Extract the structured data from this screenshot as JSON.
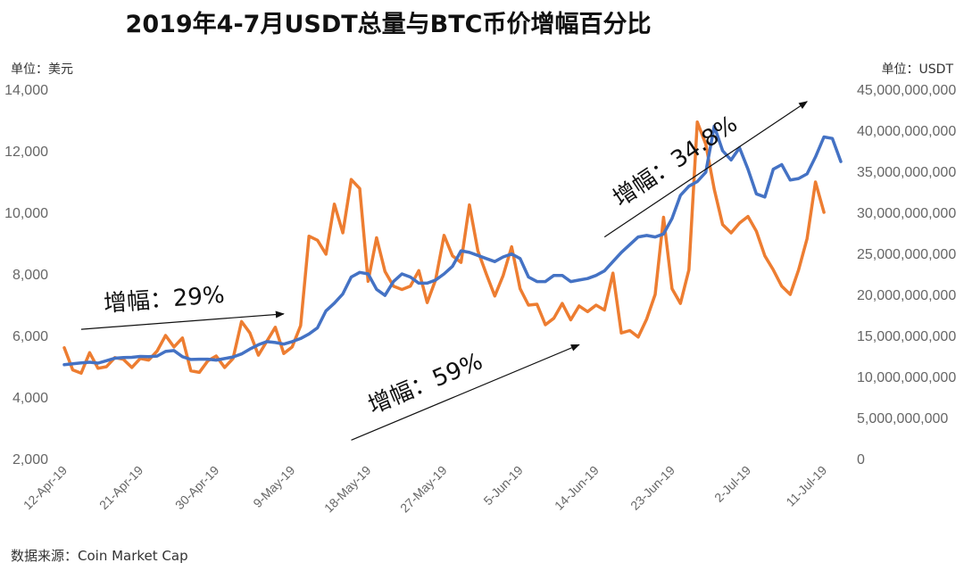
{
  "chart_data": {
    "type": "line",
    "title": "2019年4-7月USDT总量与BTC币价增幅百分比",
    "ylabel_left": "单位：美元",
    "ylabel_right": "单位：USDT",
    "ylim_left": [
      2000,
      14000
    ],
    "ylim_right": [
      0,
      45000000000
    ],
    "yticks_left": [
      "2,000",
      "4,000",
      "6,000",
      "8,000",
      "10,000",
      "12,000",
      "14,000"
    ],
    "yticks_right": [
      "0",
      "5,000,000,000",
      "10,000,000,000",
      "15,000,000,000",
      "20,000,000,000",
      "25,000,000,000",
      "30,000,000,000",
      "35,000,000,000",
      "40,000,000,000",
      "45,000,000,000"
    ],
    "x_tick_labels": [
      "12-Apr-19",
      "21-Apr-19",
      "30-Apr-19",
      "9-May-19",
      "18-May-19",
      "27-May-19",
      "5-Jun-19",
      "14-Jun-19",
      "23-Jun-19",
      "2-Jul-19",
      "11-Jul-19"
    ],
    "x_tick_index": [
      0,
      9,
      18,
      27,
      36,
      45,
      54,
      63,
      72,
      81,
      90
    ],
    "series": [
      {
        "name": "BTC",
        "axis": "left",
        "color": "#4472C4",
        "values": [
          5050,
          5080,
          5110,
          5130,
          5100,
          5180,
          5260,
          5280,
          5290,
          5320,
          5310,
          5330,
          5480,
          5510,
          5310,
          5220,
          5230,
          5230,
          5200,
          5250,
          5300,
          5400,
          5560,
          5700,
          5800,
          5770,
          5720,
          5800,
          5900,
          6050,
          6250,
          6800,
          7050,
          7350,
          7900,
          8050,
          8000,
          7500,
          7300,
          7750,
          8000,
          7900,
          7700,
          7700,
          7800,
          8000,
          8250,
          8750,
          8700,
          8600,
          8500,
          8400,
          8550,
          8650,
          8500,
          7900,
          7750,
          7750,
          7950,
          7950,
          7750,
          7800,
          7850,
          7950,
          8100,
          8400,
          8700,
          8950,
          9200,
          9250,
          9200,
          9300,
          9800,
          10550,
          10850,
          11000,
          11300,
          12800,
          12000,
          11700,
          12100,
          11400,
          10600,
          10500,
          11400,
          11550,
          11050,
          11100,
          11250,
          11800,
          12450,
          12400,
          11650
        ]
      },
      {
        "name": "USDT",
        "axis": "right",
        "color": "#ED7D31",
        "values": [
          13500000000,
          10800000000,
          10400000000,
          12900000000,
          11000000000,
          11200000000,
          12300000000,
          12100000000,
          11100000000,
          12200000000,
          12000000000,
          13100000000,
          15000000000,
          13600000000,
          14700000000,
          10700000000,
          10500000000,
          11900000000,
          12500000000,
          11100000000,
          12200000000,
          16700000000,
          15300000000,
          12600000000,
          14300000000,
          16000000000,
          12800000000,
          13600000000,
          16200000000,
          27100000000,
          26600000000,
          24900000000,
          31000000000,
          27500000000,
          34000000000,
          32900000000,
          21600000000,
          26900000000,
          22800000000,
          21000000000,
          20600000000,
          21000000000,
          22900000000,
          19000000000,
          21800000000,
          27200000000,
          24700000000,
          23900000000,
          30900000000,
          25300000000,
          22500000000,
          19800000000,
          22300000000,
          25800000000,
          20700000000,
          18700000000,
          18800000000,
          16300000000,
          17100000000,
          18900000000,
          16900000000,
          18600000000,
          17900000000,
          18700000000,
          18100000000,
          22600000000,
          15300000000,
          15600000000,
          14800000000,
          17000000000,
          20000000000,
          29400000000,
          20700000000,
          18900000000,
          23000000000,
          41000000000,
          38300000000,
          32800000000,
          28500000000,
          27500000000,
          28700000000,
          29500000000,
          27700000000,
          24700000000,
          23000000000,
          21000000000,
          20000000000,
          23000000000,
          26800000000,
          33700000000,
          30000000000
        ]
      }
    ],
    "annotations": [
      {
        "text": "增幅：29%",
        "from_x": 2,
        "from_y": 6200,
        "to_x": 26,
        "to_y": 6700
      },
      {
        "text": "增幅：59%",
        "from_x": 34,
        "from_y": 2600,
        "to_x": 61,
        "to_y": 5700
      },
      {
        "text": "增幅：34.8%",
        "from_x": 64,
        "from_y": 9200,
        "to_x": 88,
        "to_y": 13600
      }
    ],
    "source": "数据来源：Coin Market Cap"
  }
}
